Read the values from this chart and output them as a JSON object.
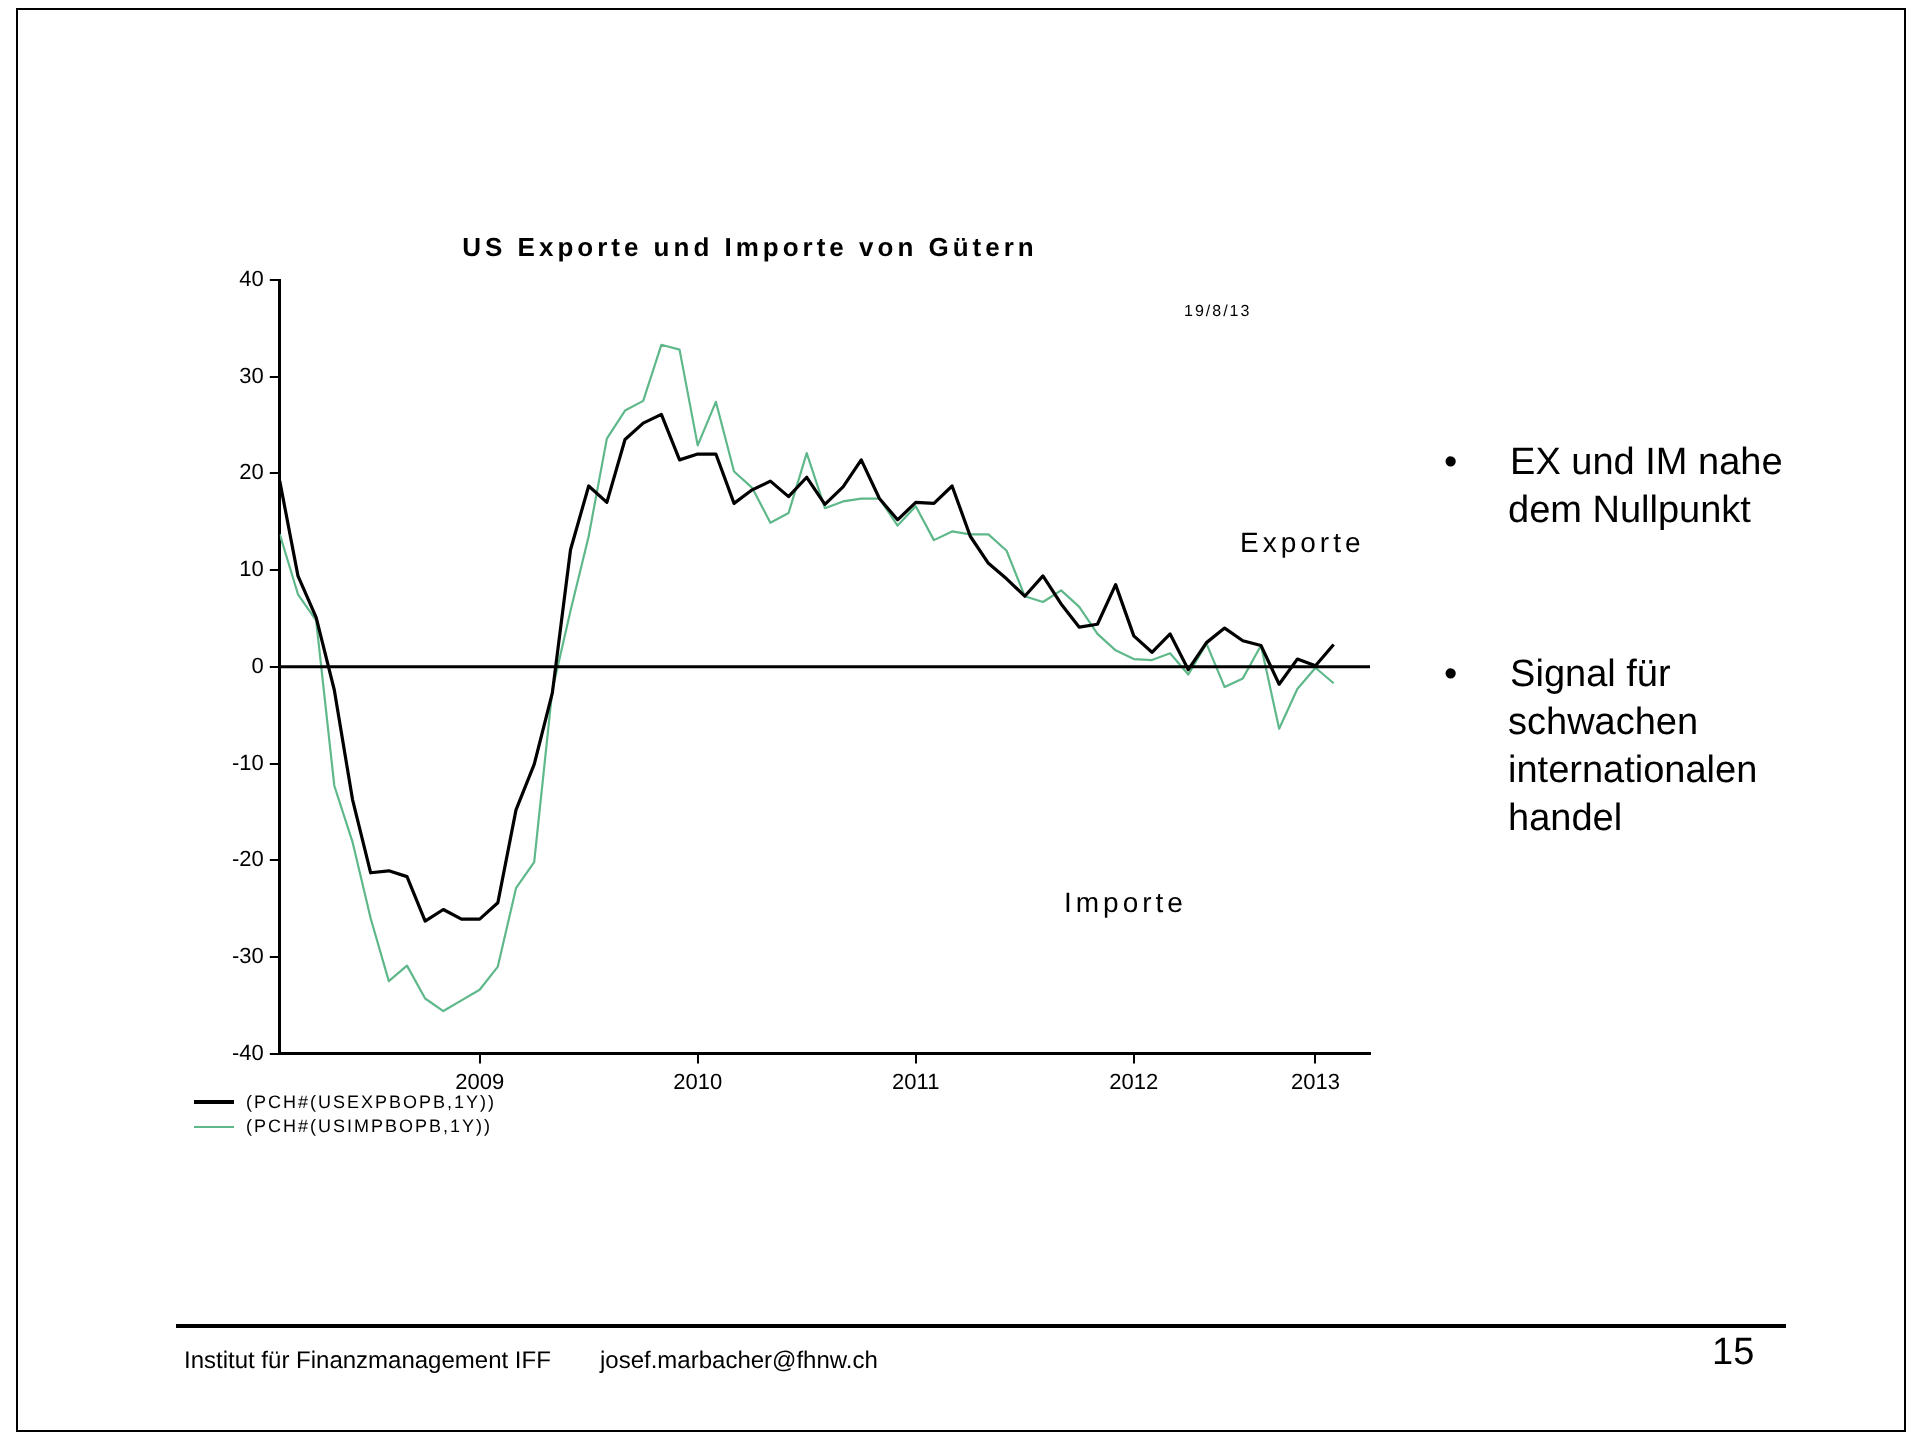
{
  "chart_data": {
    "type": "line",
    "title": "US Exporte und Importe von Gütern",
    "x": [
      "2008-08",
      "2008-09",
      "2008-10",
      "2008-11",
      "2008-12",
      "2009-01",
      "2009-02",
      "2009-03",
      "2009-04",
      "2009-05",
      "2009-06",
      "2009-07",
      "2009-08",
      "2009-09",
      "2009-10",
      "2009-11",
      "2009-12",
      "2010-01",
      "2010-02",
      "2010-03",
      "2010-04",
      "2010-05",
      "2010-06",
      "2010-07",
      "2010-08",
      "2010-09",
      "2010-10",
      "2010-11",
      "2010-12",
      "2011-01",
      "2011-02",
      "2011-03",
      "2011-04",
      "2011-05",
      "2011-06",
      "2011-07",
      "2011-08",
      "2011-09",
      "2011-10",
      "2011-11",
      "2011-12",
      "2012-01",
      "2012-02",
      "2012-03",
      "2012-04",
      "2012-05",
      "2012-06",
      "2012-07",
      "2012-08",
      "2012-09",
      "2012-10",
      "2012-11",
      "2012-12",
      "2013-01",
      "2013-02",
      "2013-03",
      "2013-04",
      "2013-05",
      "2013-06"
    ],
    "series": [
      {
        "name": "(PCH#(USEXPBOPB,1Y))",
        "color": "#000000",
        "values": [
          19.2,
          9.4,
          5.1,
          -2.4,
          -13.7,
          -21.3,
          -21.1,
          -21.7,
          -26.3,
          -25.1,
          -26.1,
          -26.1,
          -24.4,
          -14.8,
          -10.1,
          -2.7,
          12.1,
          18.7,
          17.0,
          23.5,
          25.2,
          26.1,
          21.4,
          22.0,
          22.0,
          16.9,
          18.3,
          19.2,
          17.6,
          19.6,
          16.8,
          18.6,
          21.4,
          17.4,
          15.2,
          17.0,
          16.9,
          18.7,
          13.5,
          10.7,
          9.1,
          7.3,
          9.4,
          6.5,
          4.1,
          4.4,
          8.5,
          3.2,
          1.5,
          3.4,
          -0.3,
          2.5,
          4.0,
          2.7,
          2.2,
          -1.8,
          0.8,
          0.1,
          2.3
        ]
      },
      {
        "name": "(PCH#(USIMPBOPB,1Y))",
        "color": "#5fb88a",
        "values": [
          13.7,
          7.5,
          4.8,
          -12.3,
          -18.1,
          -26.0,
          -32.5,
          -30.9,
          -34.3,
          -35.6,
          -34.5,
          -33.4,
          -31.0,
          -22.9,
          -20.2,
          -2.4,
          5.8,
          13.5,
          23.6,
          26.5,
          27.5,
          33.3,
          32.8,
          22.9,
          27.4,
          20.2,
          18.5,
          14.9,
          15.9,
          22.1,
          16.4,
          17.1,
          17.4,
          17.4,
          14.6,
          16.6,
          13.1,
          14.0,
          13.7,
          13.7,
          12.0,
          7.3,
          6.7,
          7.9,
          6.2,
          3.4,
          1.7,
          0.8,
          0.7,
          1.4,
          -0.8,
          2.4,
          -2.1,
          -1.2,
          2.2,
          -6.4,
          -2.3,
          -0.1,
          -1.7
        ]
      }
    ],
    "xlim": [
      "2008-08",
      "2013-08"
    ],
    "xticks": [
      {
        "value": "2009-07",
        "label": "2009"
      },
      {
        "value": "2010-07",
        "label": "2010"
      },
      {
        "value": "2011-07",
        "label": "2011"
      },
      {
        "value": "2012-07",
        "label": "2012"
      },
      {
        "value": "2013-05",
        "label": "2013"
      }
    ],
    "ylim": [
      -40,
      40
    ],
    "yticks": [
      -40,
      -30,
      -20,
      -10,
      0,
      10,
      20,
      30,
      40
    ],
    "ref_lines": [
      {
        "axis": "y",
        "value": 0,
        "color": "#000000"
      }
    ],
    "legend": "bottom left",
    "annotations": [
      "19/8/13",
      "Exporte",
      "Importe",
      "•     EX und IM nahe dem Nullpunkt",
      "•     Signal für schwachen internationalen handel",
      "Institut für Finanzmanagement IFF",
      "josef.marbacher@fhnw.ch",
      "15"
    ]
  }
}
